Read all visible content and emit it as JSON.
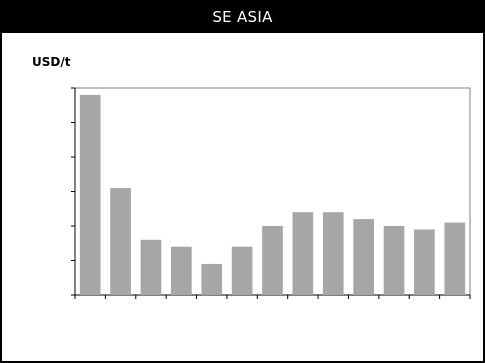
{
  "chart_data": {
    "type": "bar",
    "title": "SE ASIA",
    "ylabel": "USD/t",
    "xlabel": "",
    "categories": [
      "",
      "",
      "",
      "",
      "",
      "",
      "",
      "",
      "",
      "",
      "",
      "",
      ""
    ],
    "values": [
      5.8,
      3.1,
      1.6,
      1.4,
      0.9,
      1.4,
      2.0,
      2.4,
      2.4,
      2.2,
      2.0,
      1.9,
      2.1
    ],
    "ylim": [
      0,
      6
    ],
    "y_tick_count": 7,
    "y_tick_labels_shown": false,
    "x_tick_labels_shown": false,
    "bar_color": "#a6a6a6",
    "grid": false,
    "legend": "none"
  }
}
